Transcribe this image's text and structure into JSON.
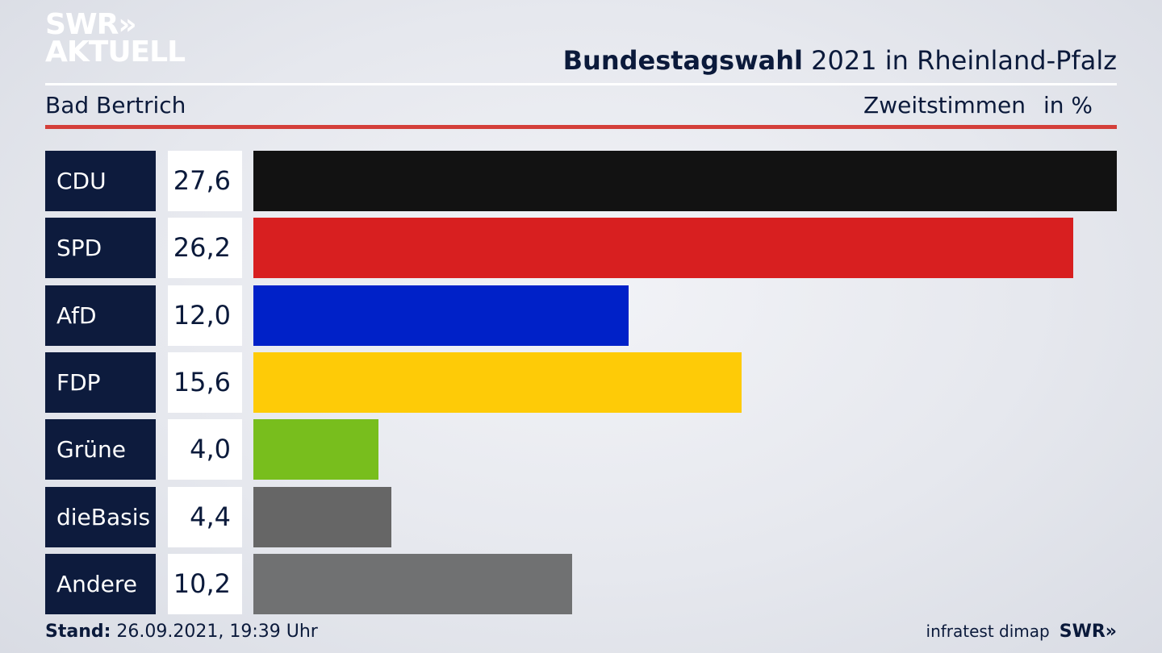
{
  "brand": {
    "line1": "SWR»",
    "line2": "AKTUELL"
  },
  "header": {
    "title_bold": "Bundestagswahl",
    "title_rest": " 2021 in Rheinland-Pfalz",
    "region": "Bad Bertrich",
    "subtitle": "Zweitstimmen",
    "unit": "in %"
  },
  "colors": {
    "accent_rule": "#d43f3a",
    "label_bg": "#0d1b3d"
  },
  "chart_data": {
    "type": "bar",
    "orientation": "horizontal",
    "categories": [
      "CDU",
      "SPD",
      "AfD",
      "FDP",
      "Grüne",
      "dieBasis",
      "Andere"
    ],
    "values": [
      27.6,
      26.2,
      12.0,
      15.6,
      4.0,
      4.4,
      10.2
    ],
    "value_labels": [
      "27,6",
      "26,2",
      "12,0",
      "15,6",
      "4,0",
      "4,4",
      "10,2"
    ],
    "colors": [
      "#121212",
      "#d81f20",
      "#0021c8",
      "#fecb07",
      "#78be1d",
      "#666666",
      "#707172"
    ],
    "title": "Bundestagswahl 2021 in Rheinland-Pfalz",
    "ylabel": "Zweitstimmen in %",
    "xlim": [
      0,
      27.6
    ],
    "grid": false
  },
  "footer": {
    "stand_label": "Stand:",
    "stand_value": " 26.09.2021, 19:39 Uhr",
    "source": "infratest dimap",
    "source_brand": "SWR»"
  }
}
